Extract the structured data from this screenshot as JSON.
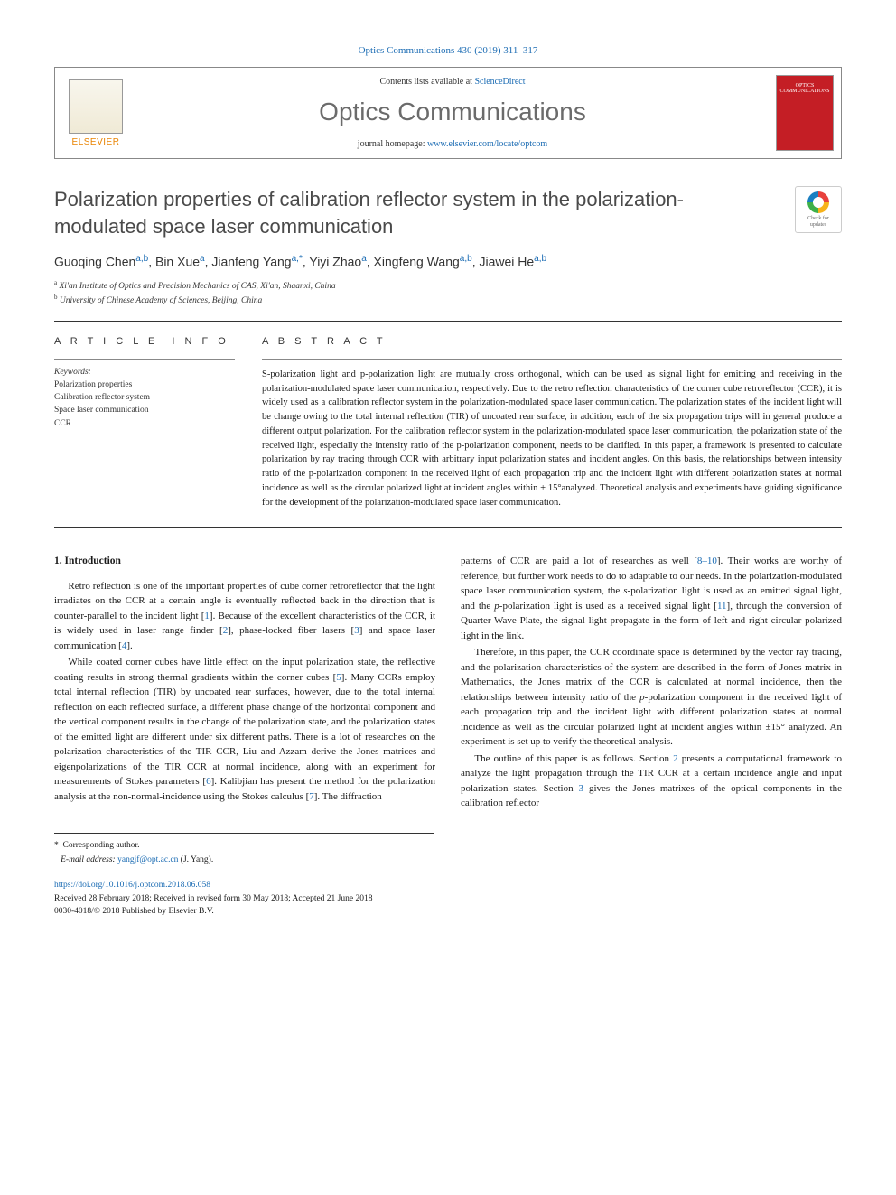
{
  "citation": "Optics Communications 430 (2019) 311–317",
  "header": {
    "contents_prefix": "Contents lists available at ",
    "contents_link": "ScienceDirect",
    "journal": "Optics Communications",
    "homepage_prefix": "journal homepage: ",
    "homepage_url": "www.elsevier.com/locate/optcom",
    "publisher": "ELSEVIER",
    "cover_text": "OPTICS COMMUNICATIONS"
  },
  "crossmark": "Check for updates",
  "title": "Polarization properties of calibration reflector system in the polarization-modulated space laser communication",
  "authors_html": "Guoqing Chen<sup class='sup'>a,b</sup>, Bin Xue<sup class='sup'>a</sup>, Jianfeng Yang<sup class='sup'>a,*</sup>, Yiyi Zhao<sup class='sup'>a</sup>, Xingfeng Wang<sup class='sup'>a,b</sup>, Jiawei He<sup class='sup'>a,b</sup>",
  "affiliations": [
    {
      "label": "a",
      "text": "Xi'an Institute of Optics and Precision Mechanics of CAS, Xi'an, Shaanxi, China"
    },
    {
      "label": "b",
      "text": "University of Chinese Academy of Sciences, Beijing, China"
    }
  ],
  "article_info": {
    "heading": "A R T I C L E I N F O",
    "keywords_label": "Keywords:",
    "keywords": [
      "Polarization properties",
      "Calibration reflector system",
      "Space laser communication",
      "CCR"
    ]
  },
  "abstract": {
    "heading": "A B S T R A C T",
    "text": "S-polarization light and p-polarization light are mutually cross orthogonal, which can be used as signal light for emitting and receiving in the polarization-modulated space laser communication, respectively. Due to the retro reflection characteristics of the corner cube retroreflector (CCR), it is widely used as a calibration reflector system in the polarization-modulated space laser communication. The polarization states of the incident light will be change owing to the total internal reflection (TIR) of uncoated rear surface, in addition, each of the six propagation trips will in general produce a different output polarization. For the calibration reflector system in the polarization-modulated space laser communication, the polarization state of the received light, especially the intensity ratio of the p-polarization component, needs to be clarified. In this paper, a framework is presented to calculate polarization by ray tracing through CCR with arbitrary input polarization states and incident angles. On this basis, the relationships between intensity ratio of the p-polarization component in the received light of each propagation trip and the incident light with different polarization states at normal incidence as well as the circular polarized light at incident angles within ± 15°analyzed. Theoretical analysis and experiments have guiding significance for the development of the polarization-modulated space laser communication."
  },
  "body": {
    "section_number": "1.",
    "section_title": "Introduction",
    "p1": "Retro reflection is one of the important properties of cube corner retroreflector that the light irradiates on the CCR at a certain angle is eventually reflected back in the direction that is counter-parallel to the incident light [1]. Because of the excellent characteristics of the CCR, it is widely used in laser range finder [2], phase-locked fiber lasers [3] and space laser communication [4].",
    "p2": "While coated corner cubes have little effect on the input polarization state, the reflective coating results in strong thermal gradients within the corner cubes [5]. Many CCRs employ total internal reflection (TIR) by uncoated rear surfaces, however, due to the total internal reflection on each reflected surface, a different phase change of the horizontal component and the vertical component results in the change of the polarization state, and the polarization states of the emitted light are different under six different paths. There is a lot of researches on the polarization characteristics of the TIR CCR, Liu and Azzam derive the Jones matrices and eigenpolarizations of the TIR CCR at normal incidence, along with an experiment for measurements of Stokes parameters [6]. Kalibjian has present the method for the polarization analysis at the non-normal-incidence using the Stokes calculus [7]. The diffraction",
    "p3": "patterns of CCR are paid a lot of researches as well [8–10]. Their works are worthy of reference, but further work needs to do to adaptable to our needs. In the polarization-modulated space laser communication system, the s-polarization light is used as an emitted signal light, and the p-polarization light is used as a received signal light [11], through the conversion of Quarter-Wave Plate, the signal light propagate in the form of left and right circular polarized light in the link.",
    "p4": "Therefore, in this paper, the CCR coordinate space is determined by the vector ray tracing, and the polarization characteristics of the system are described in the form of Jones matrix in Mathematics, the Jones matrix of the CCR is calculated at normal incidence, then the relationships between intensity ratio of the p-polarization component in the received light of each propagation trip and the incident light with different polarization states at normal incidence as well as the circular polarized light at incident angles within ±15° analyzed. An experiment is set up to verify the theoretical analysis.",
    "p5": "The outline of this paper is as follows. Section 2 presents a computational framework to analyze the light propagation through the TIR CCR at a certain incidence angle and input polarization states. Section 3 gives the Jones matrixes of the optical components in the calibration reflector",
    "refs": [
      "1",
      "2",
      "3",
      "4",
      "5",
      "6",
      "7",
      "8",
      "9",
      "10",
      "11"
    ]
  },
  "footnotes": {
    "corr": "Corresponding author.",
    "email_label": "E-mail address:",
    "email": "yangjf@opt.ac.cn",
    "email_author": "(J. Yang)."
  },
  "footer": {
    "doi": "https://doi.org/10.1016/j.optcom.2018.06.058",
    "history": "Received 28 February 2018; Received in revised form 30 May 2018; Accepted 21 June 2018",
    "copyright": "0030-4018/© 2018 Published by Elsevier B.V."
  },
  "colors": {
    "link": "#1a6bb3",
    "elsevier_orange": "#e98300",
    "cover_red": "#c41e25",
    "title_gray": "#4a4a4a",
    "journal_gray": "#6b6b6b"
  }
}
